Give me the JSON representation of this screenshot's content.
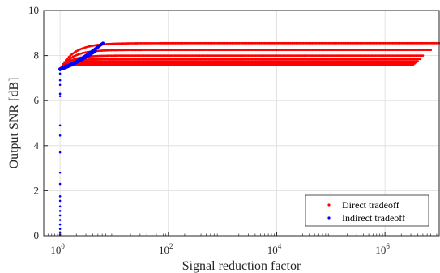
{
  "chart_data": {
    "type": "scatter",
    "title": "",
    "xlabel": "Signal reduction factor",
    "ylabel": "Output SNR [dB]",
    "xscale": "log",
    "xlim": [
      0.5,
      10000000.0
    ],
    "ylim": [
      0,
      10
    ],
    "grid": true,
    "legend_position": "bottom-right",
    "x_ticks": [
      {
        "value": 1,
        "base": "10",
        "exp": "0"
      },
      {
        "value": 100,
        "base": "10",
        "exp": "2"
      },
      {
        "value": 10000,
        "base": "10",
        "exp": "4"
      },
      {
        "value": 1000000,
        "base": "10",
        "exp": "6"
      }
    ],
    "y_ticks": [
      {
        "value": 0,
        "label": "0"
      },
      {
        "value": 2,
        "label": "2"
      },
      {
        "value": 4,
        "label": "4"
      },
      {
        "value": 6,
        "label": "6"
      },
      {
        "value": 8,
        "label": "8"
      },
      {
        "value": 10,
        "label": "10"
      }
    ],
    "series": [
      {
        "name": "Direct tradeoff",
        "color": "#ff0000",
        "curves": [
          {
            "x_end": 10000000.0,
            "y_plateau": 8.55,
            "x_knee": 6
          },
          {
            "x_end": 7000000.0,
            "y_plateau": 8.25,
            "x_knee": 5
          },
          {
            "x_end": 5000000.0,
            "y_plateau": 8.0,
            "x_knee": 4
          },
          {
            "x_end": 4500000.0,
            "y_plateau": 7.85,
            "x_knee": 3.5
          },
          {
            "x_end": 4000000.0,
            "y_plateau": 7.75,
            "x_knee": 3
          },
          {
            "x_end": 3800000.0,
            "y_plateau": 7.7,
            "x_knee": 3
          },
          {
            "x_end": 3500000.0,
            "y_plateau": 7.65,
            "x_knee": 2.5
          },
          {
            "x_end": 3300000.0,
            "y_plateau": 7.6,
            "x_knee": 2.5
          }
        ]
      },
      {
        "name": "Indirect tradeoff",
        "color": "#0000ff",
        "vertical_points": [
          0.05,
          0.15,
          0.3,
          0.5,
          0.7,
          0.9,
          1.1,
          1.3,
          1.55,
          1.75,
          2.3,
          2.8,
          3.7,
          4.45,
          4.9,
          6.2,
          6.3,
          6.7,
          6.9,
          7.2,
          7.35
        ],
        "fan": [
          {
            "x_end": 6.2,
            "y_end": 8.55
          },
          {
            "x_end": 4.5,
            "y_end": 8.2
          },
          {
            "x_end": 3.0,
            "y_end": 7.95
          },
          {
            "x_end": 2.2,
            "y_end": 7.8
          },
          {
            "x_end": 1.7,
            "y_end": 7.65
          },
          {
            "x_end": 1.3,
            "y_end": 7.55
          }
        ]
      }
    ]
  }
}
